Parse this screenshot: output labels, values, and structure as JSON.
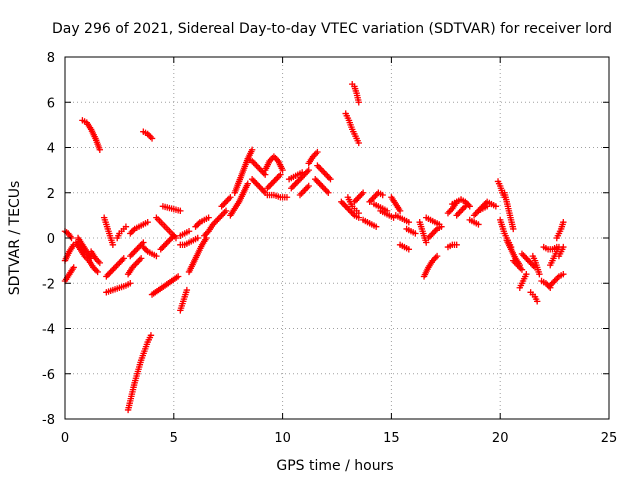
{
  "chart_data": {
    "type": "scatter",
    "title": "Day 296 of 2021, Sidereal Day-to-day VTEC variation (SDTVAR) for receiver lord",
    "xlabel": "GPS time / hours",
    "ylabel": "SDTVAR / TECUs",
    "xlim": [
      0,
      25
    ],
    "ylim": [
      -8,
      8
    ],
    "xticks": [
      "0",
      "5",
      "10",
      "15",
      "20",
      "25"
    ],
    "yticks": [
      "-8",
      "-6",
      "-4",
      "-2",
      "0",
      "2",
      "4",
      "6",
      "8"
    ],
    "marker": "plus",
    "color": "#ff0000",
    "grid": true,
    "segments": [
      {
        "x": [
          0.0,
          0.2,
          0.4
        ],
        "y": [
          -1.0,
          -0.6,
          -0.3
        ]
      },
      {
        "x": [
          0.0,
          0.15,
          0.3
        ],
        "y": [
          0.3,
          0.2,
          0.0
        ]
      },
      {
        "x": [
          0.0,
          0.2,
          0.4
        ],
        "y": [
          -1.9,
          -1.6,
          -1.3
        ]
      },
      {
        "x": [
          0.5,
          0.7,
          0.9,
          1.1,
          1.3,
          1.5
        ],
        "y": [
          -0.2,
          -0.5,
          -0.8,
          -1.0,
          -1.3,
          -1.5
        ]
      },
      {
        "x": [
          0.6,
          0.8,
          1.0,
          1.2
        ],
        "y": [
          0.0,
          -0.3,
          -0.6,
          -0.9
        ]
      },
      {
        "x": [
          0.8,
          1.0,
          1.2,
          1.4,
          1.6
        ],
        "y": [
          5.2,
          5.1,
          4.8,
          4.4,
          3.9
        ]
      },
      {
        "x": [
          1.2,
          1.4,
          1.6
        ],
        "y": [
          -0.6,
          -0.9,
          -1.1
        ]
      },
      {
        "x": [
          1.8,
          1.9,
          2.0,
          2.1,
          2.2
        ],
        "y": [
          0.9,
          0.6,
          0.3,
          0.0,
          -0.3
        ]
      },
      {
        "x": [
          1.9,
          2.2,
          2.5,
          2.8,
          3.0
        ],
        "y": [
          -2.4,
          -2.3,
          -2.2,
          -2.1,
          -2.0
        ]
      },
      {
        "x": [
          1.9,
          2.1,
          2.3,
          2.5,
          2.7
        ],
        "y": [
          -1.7,
          -1.5,
          -1.3,
          -1.1,
          -0.9
        ]
      },
      {
        "x": [
          2.4,
          2.5,
          2.6,
          2.7,
          2.8
        ],
        "y": [
          0.0,
          0.2,
          0.3,
          0.4,
          0.5
        ]
      },
      {
        "x": [
          3.0,
          3.2,
          3.4,
          3.6,
          3.8
        ],
        "y": [
          0.2,
          0.4,
          0.5,
          0.6,
          0.7
        ]
      },
      {
        "x": [
          2.9,
          3.05,
          3.2,
          3.35,
          3.5,
          3.65,
          3.8,
          3.95
        ],
        "y": [
          -7.6,
          -7.0,
          -6.4,
          -5.9,
          -5.4,
          -5.0,
          -4.6,
          -4.3
        ]
      },
      {
        "x": [
          3.0,
          3.2,
          3.4,
          3.6
        ],
        "y": [
          -0.8,
          -0.6,
          -0.4,
          -0.2
        ]
      },
      {
        "x": [
          2.9,
          3.1,
          3.3,
          3.5
        ],
        "y": [
          -1.6,
          -1.3,
          -1.1,
          -0.9
        ]
      },
      {
        "x": [
          3.6,
          3.8,
          4.0
        ],
        "y": [
          4.7,
          4.6,
          4.4
        ]
      },
      {
        "x": [
          3.6,
          3.8,
          4.0,
          4.2
        ],
        "y": [
          -0.4,
          -0.6,
          -0.7,
          -0.8
        ]
      },
      {
        "x": [
          4.0,
          4.3,
          4.6,
          4.9,
          5.2
        ],
        "y": [
          -2.5,
          -2.3,
          -2.1,
          -1.9,
          -1.7
        ]
      },
      {
        "x": [
          4.2,
          4.5,
          4.8,
          5.1
        ],
        "y": [
          0.9,
          0.6,
          0.3,
          0.0
        ]
      },
      {
        "x": [
          4.4,
          4.6,
          4.8,
          5.0
        ],
        "y": [
          -0.5,
          -0.3,
          -0.1,
          0.1
        ]
      },
      {
        "x": [
          4.5,
          4.7,
          4.9,
          5.1,
          5.3
        ],
        "y": [
          1.4,
          1.35,
          1.3,
          1.25,
          1.2
        ]
      },
      {
        "x": [
          5.3,
          5.5,
          5.7
        ],
        "y": [
          0.1,
          0.2,
          0.3
        ]
      },
      {
        "x": [
          5.3,
          5.5,
          5.7,
          5.9,
          6.1
        ],
        "y": [
          -0.3,
          -0.3,
          -0.2,
          -0.1,
          0.0
        ]
      },
      {
        "x": [
          5.3,
          5.4,
          5.5,
          5.6
        ],
        "y": [
          -3.2,
          -2.9,
          -2.6,
          -2.3
        ]
      },
      {
        "x": [
          5.7,
          5.9,
          6.1,
          6.3,
          6.5
        ],
        "y": [
          -1.5,
          -1.1,
          -0.7,
          -0.3,
          0.0
        ]
      },
      {
        "x": [
          6.0,
          6.2,
          6.4,
          6.6
        ],
        "y": [
          0.5,
          0.7,
          0.8,
          0.9
        ]
      },
      {
        "x": [
          6.4,
          6.6,
          6.8,
          7.0,
          7.2,
          7.4
        ],
        "y": [
          0.1,
          0.3,
          0.6,
          0.8,
          1.0,
          1.2
        ]
      },
      {
        "x": [
          7.2,
          7.4,
          7.6
        ],
        "y": [
          1.4,
          1.6,
          1.8
        ]
      },
      {
        "x": [
          7.6,
          7.8,
          8.0,
          8.2,
          8.4
        ],
        "y": [
          1.0,
          1.3,
          1.6,
          2.0,
          2.4
        ]
      },
      {
        "x": [
          7.8,
          8.0,
          8.2,
          8.4,
          8.6
        ],
        "y": [
          2.0,
          2.5,
          3.0,
          3.5,
          3.9
        ]
      },
      {
        "x": [
          8.4,
          8.6,
          8.8,
          9.0,
          9.2
        ],
        "y": [
          3.5,
          3.4,
          3.2,
          3.0,
          2.8
        ]
      },
      {
        "x": [
          8.6,
          8.8,
          9.0,
          9.2
        ],
        "y": [
          2.6,
          2.4,
          2.2,
          2.0
        ]
      },
      {
        "x": [
          9.2,
          9.4,
          9.6,
          9.8,
          10.0
        ],
        "y": [
          3.0,
          3.4,
          3.6,
          3.4,
          3.0
        ]
      },
      {
        "x": [
          9.3,
          9.5,
          9.7,
          9.9
        ],
        "y": [
          2.2,
          2.4,
          2.6,
          2.8
        ]
      },
      {
        "x": [
          9.3,
          9.6,
          9.9,
          10.2
        ],
        "y": [
          1.9,
          1.9,
          1.8,
          1.8
        ]
      },
      {
        "x": [
          10.3,
          10.5,
          10.7,
          10.9
        ],
        "y": [
          2.6,
          2.7,
          2.8,
          2.9
        ]
      },
      {
        "x": [
          10.4,
          10.6,
          10.8,
          11.0,
          11.2
        ],
        "y": [
          2.2,
          2.4,
          2.6,
          2.8,
          3.0
        ]
      },
      {
        "x": [
          10.8,
          11.0,
          11.2
        ],
        "y": [
          1.9,
          2.1,
          2.3
        ]
      },
      {
        "x": [
          11.2,
          11.4,
          11.6
        ],
        "y": [
          3.3,
          3.6,
          3.8
        ]
      },
      {
        "x": [
          11.5,
          11.7,
          11.9,
          12.1
        ],
        "y": [
          2.6,
          2.4,
          2.2,
          2.0
        ]
      },
      {
        "x": [
          11.6,
          11.8,
          12.0,
          12.2
        ],
        "y": [
          3.2,
          3.0,
          2.8,
          2.6
        ]
      },
      {
        "x": [
          12.7,
          12.9,
          13.1,
          13.3,
          13.5
        ],
        "y": [
          1.6,
          1.4,
          1.2,
          1.0,
          0.9
        ]
      },
      {
        "x": [
          13.0,
          13.1,
          13.2,
          13.3,
          13.4,
          13.5
        ],
        "y": [
          1.8,
          1.6,
          1.4,
          1.3,
          1.2,
          1.1
        ]
      },
      {
        "x": [
          12.9,
          13.05,
          13.2,
          13.35,
          13.5
        ],
        "y": [
          5.5,
          5.2,
          4.8,
          4.5,
          4.2
        ]
      },
      {
        "x": [
          13.2,
          13.3,
          13.4,
          13.5
        ],
        "y": [
          6.8,
          6.7,
          6.4,
          6.0
        ]
      },
      {
        "x": [
          13.3,
          13.5,
          13.7
        ],
        "y": [
          1.6,
          1.8,
          2.0
        ]
      },
      {
        "x": [
          13.7,
          13.9,
          14.1,
          14.3
        ],
        "y": [
          0.8,
          0.7,
          0.6,
          0.5
        ]
      },
      {
        "x": [
          14.0,
          14.2,
          14.4,
          14.6
        ],
        "y": [
          1.6,
          1.8,
          2.0,
          1.9
        ]
      },
      {
        "x": [
          14.2,
          14.4,
          14.6,
          14.8
        ],
        "y": [
          1.5,
          1.4,
          1.3,
          1.2
        ]
      },
      {
        "x": [
          14.5,
          14.7,
          14.9,
          15.1
        ],
        "y": [
          1.2,
          1.1,
          1.0,
          0.9
        ]
      },
      {
        "x": [
          15.0,
          15.2,
          15.4
        ],
        "y": [
          1.8,
          1.5,
          1.2
        ]
      },
      {
        "x": [
          15.2,
          15.4,
          15.6,
          15.8
        ],
        "y": [
          1.0,
          0.9,
          0.8,
          0.7
        ]
      },
      {
        "x": [
          15.4,
          15.6,
          15.8
        ],
        "y": [
          -0.3,
          -0.4,
          -0.5
        ]
      },
      {
        "x": [
          15.7,
          15.9,
          16.1
        ],
        "y": [
          0.4,
          0.3,
          0.2
        ]
      },
      {
        "x": [
          16.3,
          16.4,
          16.5,
          16.6
        ],
        "y": [
          0.7,
          0.4,
          0.1,
          -0.2
        ]
      },
      {
        "x": [
          16.5,
          16.7,
          16.9,
          17.1
        ],
        "y": [
          -1.7,
          -1.3,
          -1.0,
          -0.8
        ]
      },
      {
        "x": [
          16.6,
          16.8,
          17.0,
          17.2
        ],
        "y": [
          0.9,
          0.8,
          0.7,
          0.6
        ]
      },
      {
        "x": [
          16.7,
          16.9,
          17.1,
          17.3
        ],
        "y": [
          0.0,
          0.2,
          0.4,
          0.5
        ]
      },
      {
        "x": [
          17.6,
          17.8,
          18.0
        ],
        "y": [
          -0.4,
          -0.3,
          -0.3
        ]
      },
      {
        "x": [
          17.6,
          17.8,
          18.0,
          18.2
        ],
        "y": [
          1.1,
          1.3,
          1.6,
          1.7
        ]
      },
      {
        "x": [
          17.8,
          18.0,
          18.2,
          18.4,
          18.6
        ],
        "y": [
          1.5,
          1.6,
          1.7,
          1.6,
          1.4
        ]
      },
      {
        "x": [
          18.0,
          18.2,
          18.4
        ],
        "y": [
          1.0,
          1.2,
          1.4
        ]
      },
      {
        "x": [
          18.6,
          18.8,
          19.0
        ],
        "y": [
          0.8,
          0.7,
          0.6
        ]
      },
      {
        "x": [
          18.8,
          19.0,
          19.2,
          19.4
        ],
        "y": [
          1.0,
          1.2,
          1.3,
          1.4
        ]
      },
      {
        "x": [
          19.0,
          19.2,
          19.4,
          19.6,
          19.8
        ],
        "y": [
          1.2,
          1.4,
          1.6,
          1.5,
          1.4
        ]
      },
      {
        "x": [
          19.9,
          20.0,
          20.1,
          20.2
        ],
        "y": [
          2.5,
          2.3,
          2.0,
          1.8
        ]
      },
      {
        "x": [
          20.0,
          20.1,
          20.2,
          20.3,
          20.4,
          20.5
        ],
        "y": [
          0.8,
          0.5,
          0.2,
          0.0,
          -0.2,
          -0.4
        ]
      },
      {
        "x": [
          20.2,
          20.3,
          20.4,
          20.5,
          20.6
        ],
        "y": [
          2.0,
          1.6,
          1.2,
          0.8,
          0.4
        ]
      },
      {
        "x": [
          20.3,
          20.5,
          20.7,
          20.9
        ],
        "y": [
          -0.1,
          -0.5,
          -0.9,
          -1.2
        ]
      },
      {
        "x": [
          20.6,
          20.8,
          21.0
        ],
        "y": [
          -1.0,
          -1.2,
          -1.4
        ]
      },
      {
        "x": [
          20.9,
          21.0,
          21.1,
          21.2
        ],
        "y": [
          -2.2,
          -2.0,
          -1.8,
          -1.6
        ]
      },
      {
        "x": [
          21.0,
          21.2,
          21.4,
          21.6
        ],
        "y": [
          -0.7,
          -0.9,
          -1.1,
          -1.3
        ]
      },
      {
        "x": [
          21.4,
          21.5,
          21.6,
          21.7
        ],
        "y": [
          -2.4,
          -2.5,
          -2.6,
          -2.8
        ]
      },
      {
        "x": [
          21.5,
          21.6,
          21.7,
          21.8
        ],
        "y": [
          -0.8,
          -1.0,
          -1.3,
          -1.6
        ]
      },
      {
        "x": [
          21.9,
          22.1,
          22.3
        ],
        "y": [
          -1.9,
          -2.0,
          -2.2
        ]
      },
      {
        "x": [
          22.0,
          22.2,
          22.4,
          22.6
        ],
        "y": [
          -0.4,
          -0.5,
          -0.5,
          -0.4
        ]
      },
      {
        "x": [
          22.3,
          22.4,
          22.5,
          22.6,
          22.7
        ],
        "y": [
          -1.2,
          -1.0,
          -0.8,
          -0.6,
          -0.4
        ]
      },
      {
        "x": [
          22.3,
          22.5,
          22.7,
          22.9
        ],
        "y": [
          -2.1,
          -1.9,
          -1.7,
          -1.6
        ]
      },
      {
        "x": [
          22.6,
          22.7,
          22.8,
          22.9
        ],
        "y": [
          0.0,
          0.2,
          0.4,
          0.7
        ]
      },
      {
        "x": [
          22.7,
          22.8,
          22.9
        ],
        "y": [
          -0.8,
          -0.6,
          -0.4
        ]
      }
    ]
  }
}
